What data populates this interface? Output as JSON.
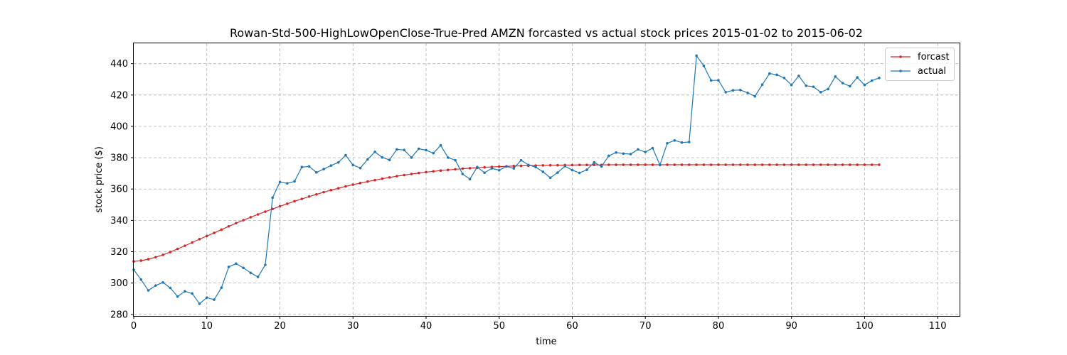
{
  "chart_data": {
    "type": "line",
    "title": "Rowan-Std-500-HighLowOpenClose-True-Pred AMZN forcasted vs actual stock prices 2015-01-02 to 2015-06-02",
    "xlabel": "time",
    "ylabel": "stock price ($)",
    "xlim": [
      0,
      113
    ],
    "ylim": [
      279,
      453
    ],
    "x_ticks": [
      0,
      10,
      20,
      30,
      40,
      50,
      60,
      70,
      80,
      90,
      100,
      110
    ],
    "y_ticks": [
      280,
      300,
      320,
      340,
      360,
      380,
      400,
      420,
      440
    ],
    "grid": true,
    "legend_position": "top-right",
    "series": [
      {
        "name": "forcast",
        "color": "#d62728",
        "values": [
          313.8,
          314.3,
          315.2,
          316.5,
          318.0,
          319.8,
          321.8,
          323.8,
          325.9,
          328.0,
          330.0,
          332.0,
          334.1,
          336.2,
          338.2,
          340.1,
          342.0,
          343.8,
          345.6,
          347.3,
          349.0,
          350.6,
          352.2,
          353.7,
          355.2,
          356.6,
          358.0,
          359.3,
          360.5,
          361.7,
          362.8,
          363.8,
          364.8,
          365.7,
          366.6,
          367.4,
          368.2,
          368.9,
          369.6,
          370.2,
          370.8,
          371.3,
          371.8,
          372.2,
          372.6,
          373.0,
          373.3,
          373.6,
          373.9,
          374.1,
          374.3,
          374.5,
          374.7,
          374.8,
          374.9,
          375.0,
          375.1,
          375.2,
          375.2,
          375.3,
          375.3,
          375.4,
          375.4,
          375.4,
          375.4,
          375.5,
          375.5,
          375.5,
          375.5,
          375.5,
          375.5,
          375.5,
          375.5,
          375.5,
          375.5,
          375.5,
          375.5,
          375.5,
          375.5,
          375.5,
          375.5,
          375.5,
          375.5,
          375.5,
          375.5,
          375.5,
          375.5,
          375.5,
          375.5,
          375.5,
          375.5,
          375.5,
          375.5,
          375.5,
          375.5,
          375.5,
          375.5,
          375.5,
          375.5,
          375.5,
          375.5,
          375.5,
          375.5
        ]
      },
      {
        "name": "actual",
        "color": "#1f77b4",
        "values": [
          308.5,
          302.2,
          295.3,
          298.4,
          300.4,
          296.9,
          291.4,
          294.7,
          293.3,
          286.8,
          290.7,
          289.4,
          297.0,
          310.3,
          312.4,
          309.7,
          306.5,
          303.9,
          311.6,
          354.5,
          364.5,
          363.6,
          364.9,
          374.0,
          374.4,
          370.6,
          372.7,
          375.0,
          377.0,
          381.6,
          375.3,
          373.4,
          378.9,
          383.7,
          380.2,
          378.6,
          385.3,
          384.9,
          380.1,
          385.7,
          384.8,
          382.9,
          387.9,
          380.1,
          378.4,
          369.6,
          366.3,
          374.0,
          370.4,
          373.2,
          372.0,
          374.4,
          373.2,
          378.4,
          375.4,
          374.0,
          371.0,
          367.2,
          370.5,
          374.6,
          372.1,
          370.3,
          372.3,
          377.0,
          374.4,
          381.2,
          383.3,
          382.6,
          382.3,
          385.3,
          383.6,
          386.1,
          375.3,
          389.2,
          391.0,
          389.7,
          390.0,
          445.1,
          438.6,
          429.3,
          429.4,
          421.8,
          423.0,
          423.2,
          421.4,
          419.2,
          426.6,
          433.7,
          432.9,
          430.9,
          426.4,
          432.2,
          425.9,
          425.3,
          421.8,
          423.8,
          431.8,
          427.6,
          425.6,
          431.2,
          426.4,
          429.2,
          430.9
        ]
      }
    ]
  }
}
